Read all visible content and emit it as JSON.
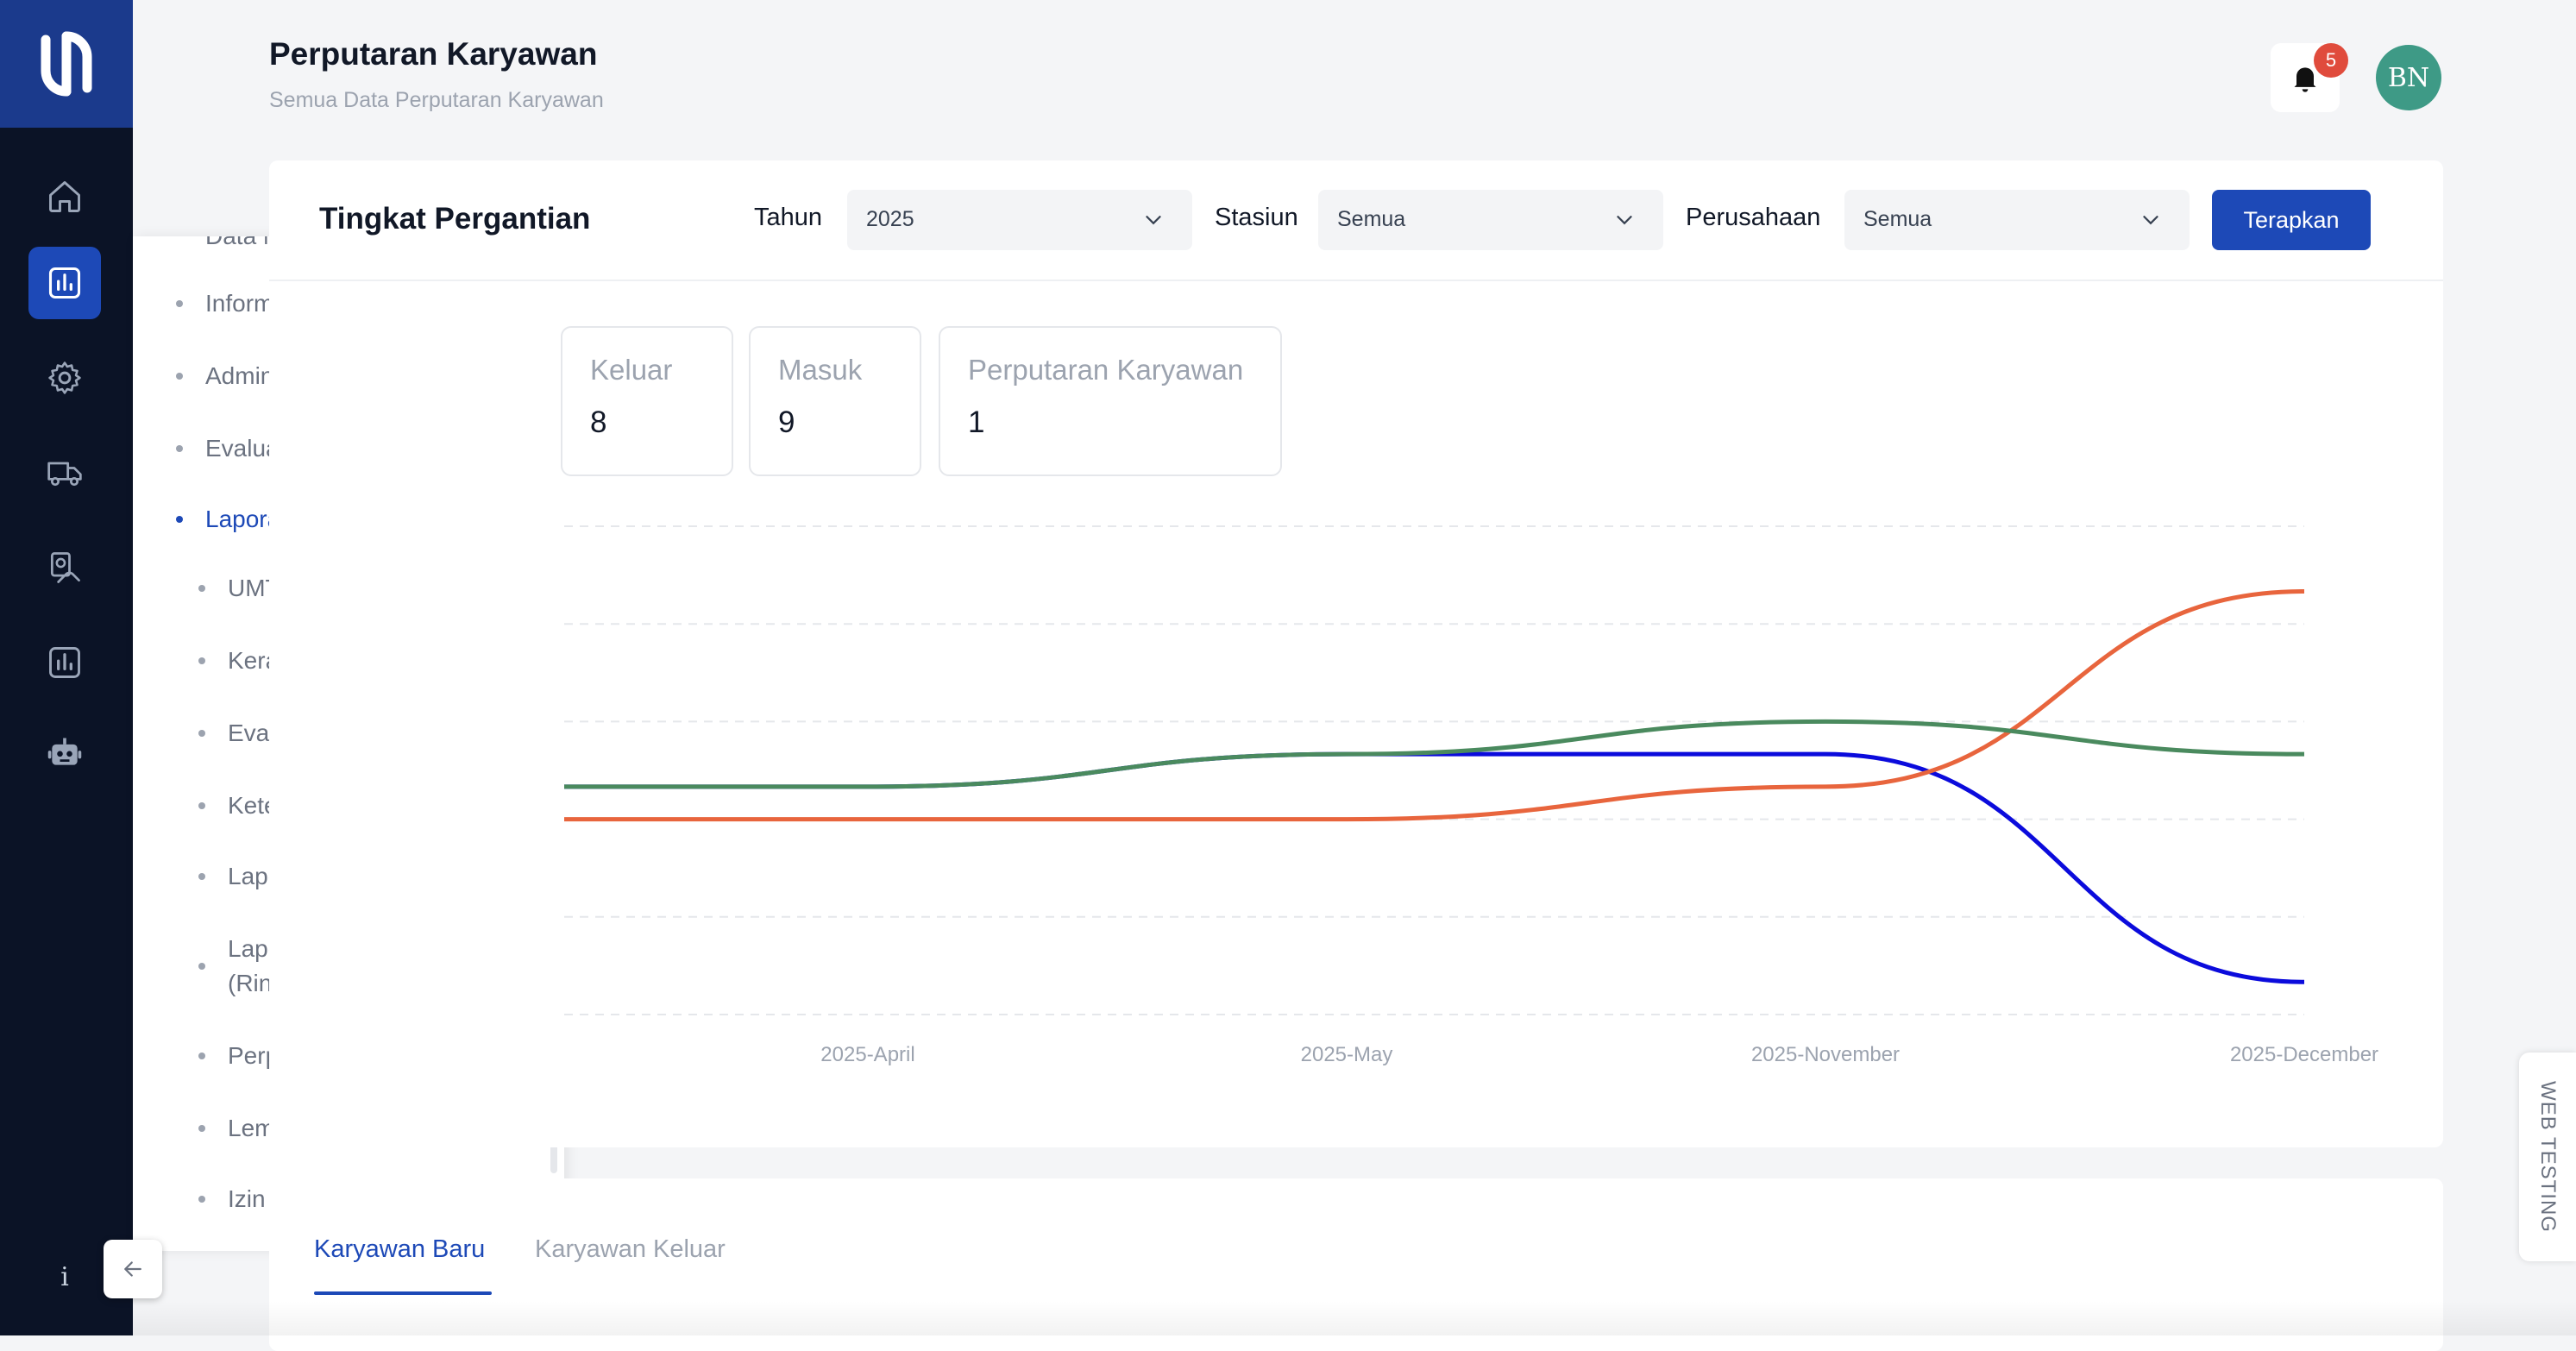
{
  "header": {
    "title": "Perputaran Karyawan",
    "subtitle": "Semua Data Perputaran Karyawan",
    "notifications_count": "5",
    "avatar_initials": "BN"
  },
  "rail": {
    "icons": [
      "home-icon",
      "report-chart-icon",
      "settings-gear-icon",
      "truck-icon",
      "hand-coin-icon",
      "bar-chart-icon",
      "robot-icon"
    ],
    "active_index": 1,
    "info_label": "i"
  },
  "flyout": {
    "partial_top_label": "Data Master",
    "items": [
      {
        "label": "Informasi",
        "has_chevron": true
      },
      {
        "label": "Administrasi Personalia",
        "has_chevron": true
      },
      {
        "label": "Evaluasi Performa",
        "has_chevron": false
      },
      {
        "label": "Laporan",
        "has_chevron": true,
        "expanded": true,
        "active": true
      }
    ],
    "sub_items": [
      "UMT",
      "Kerajinan",
      "Evaluasi Performa",
      "Keterlambatan",
      "Laporan Kehadiran",
      "Laporan Kehadiran (Rincian)",
      "Perputaran Karyawan",
      "Lembur",
      "Izin Pulang Cepat"
    ]
  },
  "filters": {
    "card_title": "Tingkat Pergantian",
    "tahun_label": "Tahun",
    "tahun_value": "2025",
    "stasiun_label": "Stasiun",
    "stasiun_value": "Semua",
    "perusahaan_label": "Perusahaan",
    "perusahaan_value": "Semua",
    "apply_label": "Terapkan"
  },
  "stats": [
    {
      "label": "Keluar",
      "value": "8"
    },
    {
      "label": "Masuk",
      "value": "9"
    },
    {
      "label": "Perputaran Karyawan",
      "value": "1"
    }
  ],
  "chart_data": {
    "type": "line",
    "categories": [
      "2025-April",
      "2025-May",
      "2025-November",
      "2025-December"
    ],
    "series": [
      {
        "color": "#0b0bdc",
        "values": [
          1,
          2,
          2,
          -5
        ]
      },
      {
        "color": "#e8653d",
        "values": [
          0,
          0,
          1,
          7
        ]
      },
      {
        "color": "#4a8a5e",
        "values": [
          1,
          2,
          3,
          2
        ]
      }
    ],
    "ylim": [
      -6,
      9
    ],
    "grid": true
  },
  "tabs": [
    {
      "label": "Karyawan Baru",
      "active": true
    },
    {
      "label": "Karyawan Keluar",
      "active": false
    }
  ],
  "side_tab": {
    "label": "WEB TESTING"
  },
  "colors": {
    "primary": "#1d49b7",
    "rail_bg": "#0b1326",
    "badge": "#e04b3c",
    "avatar_bg": "#3e9a86"
  }
}
